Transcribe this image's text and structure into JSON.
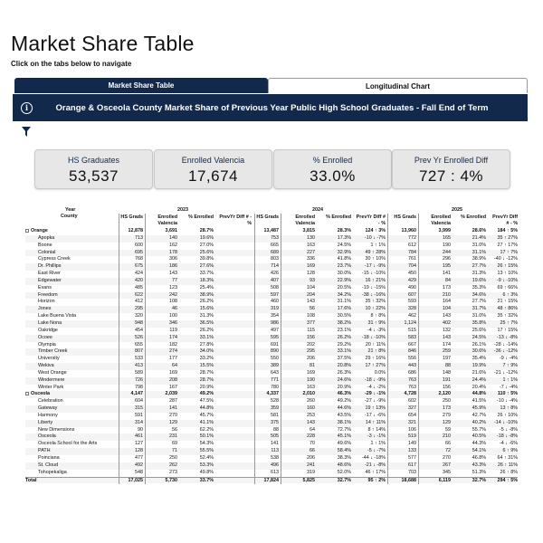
{
  "page": {
    "title": "Market Share Table",
    "subtitle": "Click on the tabs below to navigate"
  },
  "tabs": [
    {
      "label": "Market Share Table",
      "active": true
    },
    {
      "label": "Longitudinal Chart",
      "active": false
    }
  ],
  "banner": {
    "icon": "info-icon",
    "text": "Orange & Osceola County Market Share of Previous Year Public High School Graduates - Fall End of Term"
  },
  "filter_icon": "filter-icon",
  "colors": {
    "navy": "#13294b",
    "card_bg": "#e7e7e7"
  },
  "cards": [
    {
      "label": "HS Graduates",
      "value": "53,537"
    },
    {
      "label": "Enrolled Valencia",
      "value": "17,674"
    },
    {
      "label": "% Enrolled",
      "value": "33.0%"
    },
    {
      "label": "Prev Yr Enrolled Diff",
      "value": "727 : 4%"
    }
  ],
  "table": {
    "row_headers": [
      "Year",
      "County"
    ],
    "years": [
      "2023",
      "2024",
      "2025"
    ],
    "columns": [
      "HS Grads",
      "Enrolled Valencia",
      "% Enrolled",
      "PrevYr Diff # - %"
    ],
    "rows": [
      {
        "name": "Orange",
        "group": true,
        "v": [
          "12,878",
          "3,691",
          "28.7%",
          "",
          "13,487",
          "3,815",
          "28.3%",
          "124 ↑ 3%",
          "13,960",
          "3,999",
          "28.6%",
          "184 ↑ 5%"
        ]
      },
      {
        "name": "Apopka",
        "v": [
          "713",
          "140",
          "19.6%",
          "",
          "753",
          "130",
          "17.3%",
          "-10 ↓ -7%",
          "772",
          "165",
          "21.4%",
          "35 ↑ 27%"
        ]
      },
      {
        "name": "Boone",
        "v": [
          "600",
          "162",
          "27.0%",
          "",
          "665",
          "163",
          "24.5%",
          "1 ↑ 1%",
          "612",
          "190",
          "31.0%",
          "27 ↑ 17%"
        ]
      },
      {
        "name": "Colonial",
        "v": [
          "695",
          "178",
          "25.6%",
          "",
          "689",
          "227",
          "32.9%",
          "49 ↑ 28%",
          "784",
          "244",
          "31.1%",
          "17 ↑ 7%"
        ]
      },
      {
        "name": "Cypress Creek",
        "v": [
          "768",
          "306",
          "39.8%",
          "",
          "803",
          "336",
          "41.8%",
          "30 ↑ 10%",
          "761",
          "296",
          "38.9%",
          "-40 ↓ -12%"
        ]
      },
      {
        "name": "Dr. Phillips",
        "v": [
          "675",
          "186",
          "27.6%",
          "",
          "714",
          "169",
          "23.7%",
          "-17 ↓ -9%",
          "704",
          "195",
          "27.7%",
          "26 ↑ 15%"
        ]
      },
      {
        "name": "East River",
        "v": [
          "424",
          "143",
          "33.7%",
          "",
          "426",
          "128",
          "30.0%",
          "-15 ↓ -10%",
          "450",
          "141",
          "31.3%",
          "13 ↑ 10%"
        ]
      },
      {
        "name": "Edgewater",
        "v": [
          "420",
          "77",
          "18.3%",
          "",
          "407",
          "93",
          "22.9%",
          "16 ↑ 21%",
          "429",
          "84",
          "19.6%",
          "-9 ↓ -10%"
        ]
      },
      {
        "name": "Evans",
        "v": [
          "485",
          "123",
          "25.4%",
          "",
          "508",
          "104",
          "20.5%",
          "-19 ↓ -15%",
          "490",
          "173",
          "35.3%",
          "69 ↑ 66%"
        ]
      },
      {
        "name": "Freedom",
        "v": [
          "622",
          "242",
          "38.9%",
          "",
          "597",
          "204",
          "34.2%",
          "-38 ↓ -16%",
          "607",
          "210",
          "34.6%",
          "6 ↑ 3%"
        ]
      },
      {
        "name": "Horizon",
        "v": [
          "412",
          "108",
          "26.2%",
          "",
          "460",
          "143",
          "31.1%",
          "35 ↑ 32%",
          "593",
          "164",
          "27.7%",
          "21 ↑ 15%"
        ]
      },
      {
        "name": "Jones",
        "v": [
          "295",
          "46",
          "15.6%",
          "",
          "319",
          "56",
          "17.6%",
          "10 ↑ 22%",
          "328",
          "104",
          "31.7%",
          "48 ↑ 86%"
        ]
      },
      {
        "name": "Lake Buena Vista",
        "v": [
          "320",
          "100",
          "31.3%",
          "",
          "354",
          "108",
          "30.5%",
          "8 ↑ 8%",
          "462",
          "143",
          "31.0%",
          "35 ↑ 32%"
        ]
      },
      {
        "name": "Lake Nona",
        "v": [
          "948",
          "346",
          "36.5%",
          "",
          "986",
          "377",
          "38.2%",
          "31 ↑ 9%",
          "1,124",
          "402",
          "35.8%",
          "25 ↑ 7%"
        ]
      },
      {
        "name": "Oakridge",
        "v": [
          "454",
          "119",
          "26.2%",
          "",
          "497",
          "115",
          "23.1%",
          "-4 ↓ -3%",
          "515",
          "132",
          "25.6%",
          "17 ↑ 15%"
        ]
      },
      {
        "name": "Ocoee",
        "v": [
          "526",
          "174",
          "33.1%",
          "",
          "595",
          "156",
          "26.2%",
          "-18 ↓ -10%",
          "583",
          "143",
          "24.5%",
          "-13 ↓ -8%"
        ]
      },
      {
        "name": "Olympia",
        "v": [
          "655",
          "182",
          "27.8%",
          "",
          "691",
          "202",
          "29.2%",
          "20 ↑ 11%",
          "667",
          "174",
          "26.1%",
          "-28 ↓ -14%"
        ]
      },
      {
        "name": "Timber Creek",
        "v": [
          "807",
          "274",
          "34.0%",
          "",
          "890",
          "295",
          "33.1%",
          "21 ↑ 8%",
          "846",
          "259",
          "30.6%",
          "-36 ↓ -12%"
        ]
      },
      {
        "name": "University",
        "v": [
          "533",
          "177",
          "33.2%",
          "",
          "550",
          "206",
          "37.5%",
          "29 ↑ 16%",
          "556",
          "197",
          "35.4%",
          "-9 ↓ -4%"
        ]
      },
      {
        "name": "Wekiva",
        "v": [
          "413",
          "64",
          "15.5%",
          "",
          "389",
          "81",
          "20.8%",
          "17 ↑ 27%",
          "443",
          "88",
          "19.9%",
          "7 ↑ 9%"
        ]
      },
      {
        "name": "West Orange",
        "v": [
          "589",
          "169",
          "28.7%",
          "",
          "643",
          "169",
          "26.3%",
          "0.0%",
          "686",
          "148",
          "21.6%",
          "-21 ↓ -12%"
        ]
      },
      {
        "name": "Windermere",
        "v": [
          "726",
          "208",
          "28.7%",
          "",
          "771",
          "190",
          "24.6%",
          "-18 ↓ -9%",
          "763",
          "191",
          "24.4%",
          "1 ↑ 1%"
        ]
      },
      {
        "name": "Winter Park",
        "v": [
          "798",
          "167",
          "20.9%",
          "",
          "780",
          "163",
          "20.9%",
          "-4 ↓ -2%",
          "763",
          "156",
          "20.4%",
          "-7 ↓ -4%"
        ]
      },
      {
        "name": "Osceola",
        "group": true,
        "v": [
          "4,147",
          "2,039",
          "49.2%",
          "",
          "4,337",
          "2,010",
          "46.3%",
          "-29 ↓ -1%",
          "4,728",
          "2,120",
          "44.8%",
          "110 ↑ 5%"
        ]
      },
      {
        "name": "Celebration",
        "v": [
          "604",
          "287",
          "47.5%",
          "",
          "528",
          "260",
          "49.2%",
          "-27 ↓ -9%",
          "602",
          "250",
          "41.5%",
          "-10 ↓ -4%"
        ]
      },
      {
        "name": "Gateway",
        "v": [
          "315",
          "141",
          "44.8%",
          "",
          "359",
          "160",
          "44.6%",
          "19 ↑ 13%",
          "327",
          "173",
          "45.9%",
          "13 ↑ 8%"
        ]
      },
      {
        "name": "Harmony",
        "v": [
          "591",
          "270",
          "45.7%",
          "",
          "581",
          "253",
          "43.5%",
          "-17 ↓ -6%",
          "654",
          "279",
          "42.7%",
          "26 ↑ 10%"
        ]
      },
      {
        "name": "Liberty",
        "v": [
          "314",
          "129",
          "41.1%",
          "",
          "375",
          "143",
          "38.1%",
          "14 ↑ 11%",
          "321",
          "129",
          "40.2%",
          "-14 ↓ -10%"
        ]
      },
      {
        "name": "New Dimensions",
        "v": [
          "90",
          "56",
          "62.2%",
          "",
          "88",
          "64",
          "72.7%",
          "8 ↑ 14%",
          "106",
          "59",
          "55.7%",
          "-5 ↓ -8%"
        ]
      },
      {
        "name": "Osceola",
        "v": [
          "461",
          "231",
          "50.1%",
          "",
          "505",
          "228",
          "45.1%",
          "-3 ↓ -1%",
          "519",
          "210",
          "40.5%",
          "-18 ↓ -8%"
        ]
      },
      {
        "name": "Osceola School for the Arts",
        "v": [
          "127",
          "69",
          "54.3%",
          "",
          "141",
          "70",
          "49.6%",
          "1 ↑ 1%",
          "149",
          "66",
          "44.3%",
          "-4 ↓ -6%"
        ]
      },
      {
        "name": "PATH",
        "v": [
          "128",
          "71",
          "55.5%",
          "",
          "113",
          "66",
          "58.4%",
          "-5 ↓ -7%",
          "133",
          "72",
          "54.1%",
          "6 ↑ 9%"
        ]
      },
      {
        "name": "Poinciana",
        "v": [
          "477",
          "250",
          "52.4%",
          "",
          "538",
          "206",
          "38.3%",
          "-44 ↓ -18%",
          "577",
          "270",
          "46.8%",
          "64 ↑ 31%"
        ]
      },
      {
        "name": "St. Cloud",
        "v": [
          "492",
          "262",
          "53.3%",
          "",
          "496",
          "241",
          "48.6%",
          "-21 ↓ -8%",
          "617",
          "267",
          "43.3%",
          "26 ↑ 11%"
        ]
      },
      {
        "name": "Tohopekaliga",
        "v": [
          "548",
          "273",
          "49.8%",
          "",
          "613",
          "319",
          "52.0%",
          "46 ↑ 17%",
          "703",
          "345",
          "51.3%",
          "26 ↑ 8%"
        ]
      },
      {
        "name": "Total",
        "total": true,
        "v": [
          "17,025",
          "5,730",
          "33.7%",
          "",
          "17,824",
          "5,825",
          "32.7%",
          "95 ↑ 2%",
          "18,688",
          "6,119",
          "32.7%",
          "294 ↑ 5%"
        ]
      }
    ]
  }
}
